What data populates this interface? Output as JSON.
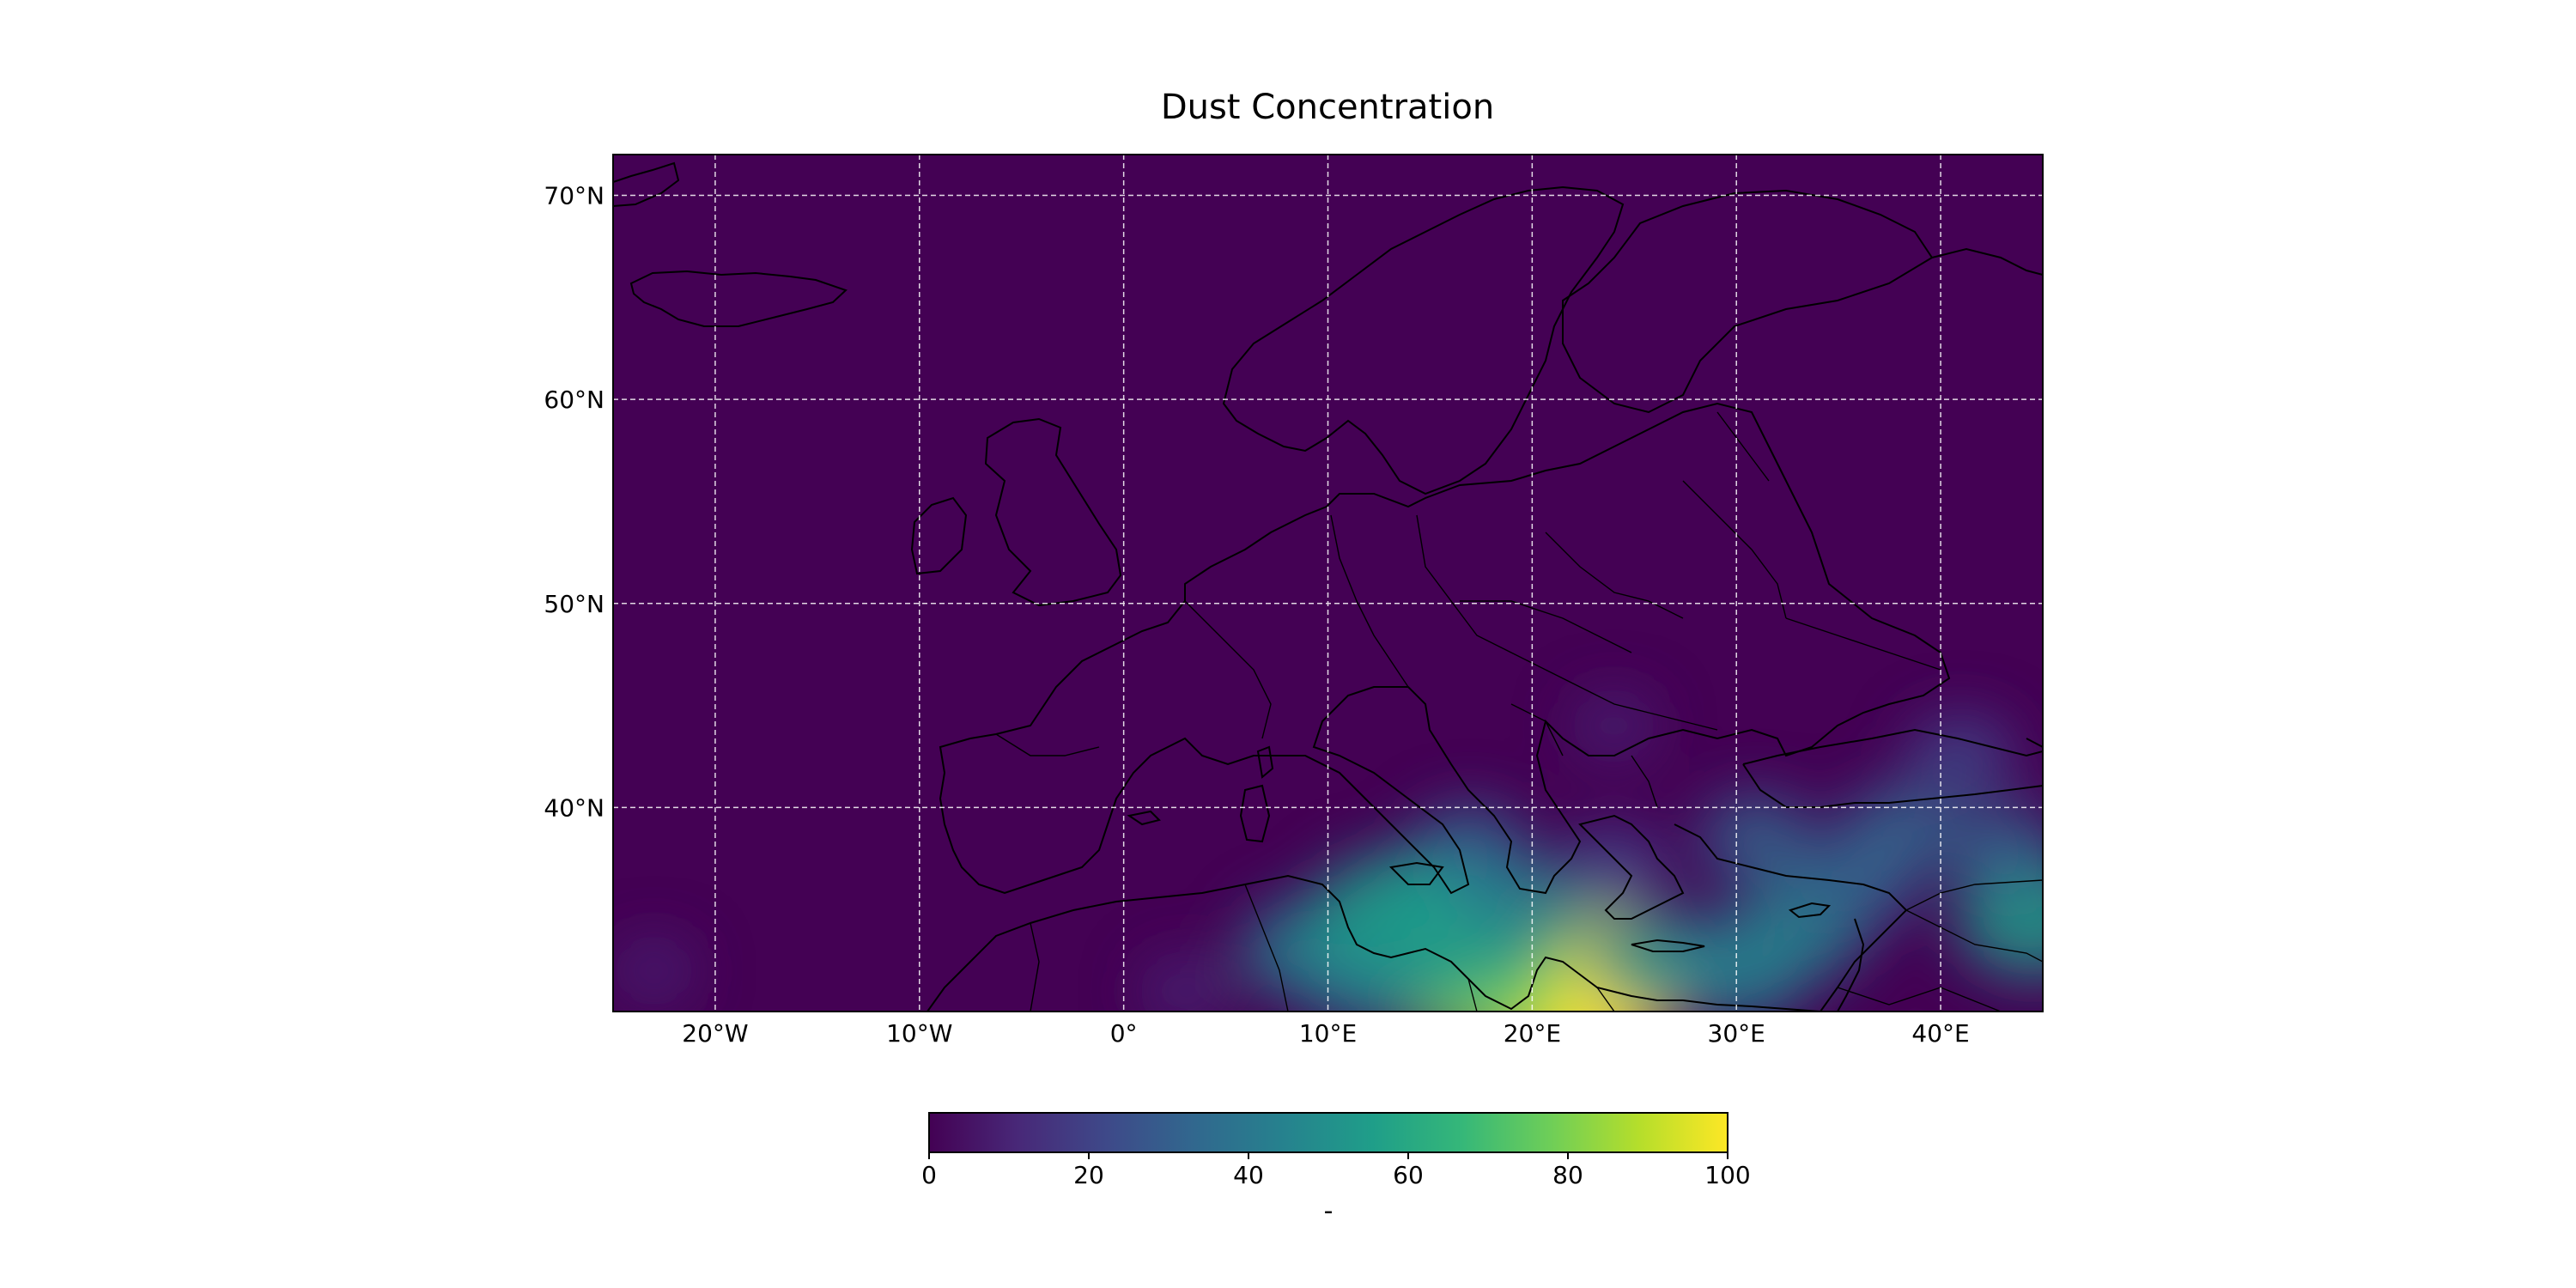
{
  "figure": {
    "title": "Dust Concentration"
  },
  "map": {
    "projection": "PlateCarree",
    "lon_range": [
      -25,
      45
    ],
    "lat_range": [
      30,
      72
    ],
    "background_color": "#440154",
    "coastline_color": "#000000",
    "gridline_color": "#ffffff",
    "gridline_style": "dashed",
    "grid": true
  },
  "axes": {
    "x_ticks": [
      {
        "value": -20,
        "label": "20°W"
      },
      {
        "value": -10,
        "label": "10°W"
      },
      {
        "value": 0,
        "label": "0°"
      },
      {
        "value": 10,
        "label": "10°E"
      },
      {
        "value": 20,
        "label": "20°E"
      },
      {
        "value": 30,
        "label": "30°E"
      },
      {
        "value": 40,
        "label": "40°E"
      }
    ],
    "y_ticks": [
      {
        "value": 70,
        "label": "70°N"
      },
      {
        "value": 60,
        "label": "60°N"
      },
      {
        "value": 50,
        "label": "50°N"
      },
      {
        "value": 40,
        "label": "40°N"
      }
    ]
  },
  "colorbar": {
    "colormap": "viridis",
    "range": [
      0,
      100
    ],
    "ticks": [
      "0",
      "20",
      "40",
      "60",
      "80",
      "100"
    ],
    "label": "-",
    "stops": [
      "#440154",
      "#482878",
      "#3e4989",
      "#31688e",
      "#26828e",
      "#1f9e89",
      "#35b779",
      "#6ece58",
      "#b5de2b",
      "#fde725"
    ]
  },
  "dust_field": [
    {
      "lon": 21.5,
      "lat": 31.0,
      "value": 100
    },
    {
      "lon": 22.5,
      "lat": 31.6,
      "value": 95
    },
    {
      "lon": 17.0,
      "lat": 31.5,
      "value": 78
    },
    {
      "lon": 16.5,
      "lat": 33.5,
      "value": 60
    },
    {
      "lon": 15.5,
      "lat": 36.0,
      "value": 45
    },
    {
      "lon": 17.0,
      "lat": 38.0,
      "value": 30
    },
    {
      "lon": 12.0,
      "lat": 31.5,
      "value": 40
    },
    {
      "lon": 9.0,
      "lat": 33.0,
      "value": 42
    },
    {
      "lon": 13.0,
      "lat": 34.8,
      "value": 58
    },
    {
      "lon": 20.0,
      "lat": 35.0,
      "value": 40
    },
    {
      "lon": 26.0,
      "lat": 32.5,
      "value": 45
    },
    {
      "lon": 30.0,
      "lat": 32.0,
      "value": 48
    },
    {
      "lon": 33.0,
      "lat": 34.0,
      "value": 45
    },
    {
      "lon": 36.0,
      "lat": 36.5,
      "value": 38
    },
    {
      "lon": 38.0,
      "lat": 39.0,
      "value": 30
    },
    {
      "lon": 41.0,
      "lat": 42.5,
      "value": 25
    },
    {
      "lon": 31.0,
      "lat": 38.5,
      "value": 30
    },
    {
      "lon": 24.0,
      "lat": 37.0,
      "value": 25
    },
    {
      "lon": 44.5,
      "lat": 34.5,
      "value": 55
    },
    {
      "lon": 43.0,
      "lat": 38.0,
      "value": 30
    },
    {
      "lon": 3.0,
      "lat": 31.0,
      "value": 12
    },
    {
      "lon": -23.0,
      "lat": 32.0,
      "value": 6
    },
    {
      "lon": 24.0,
      "lat": 44.0,
      "value": 8
    }
  ]
}
